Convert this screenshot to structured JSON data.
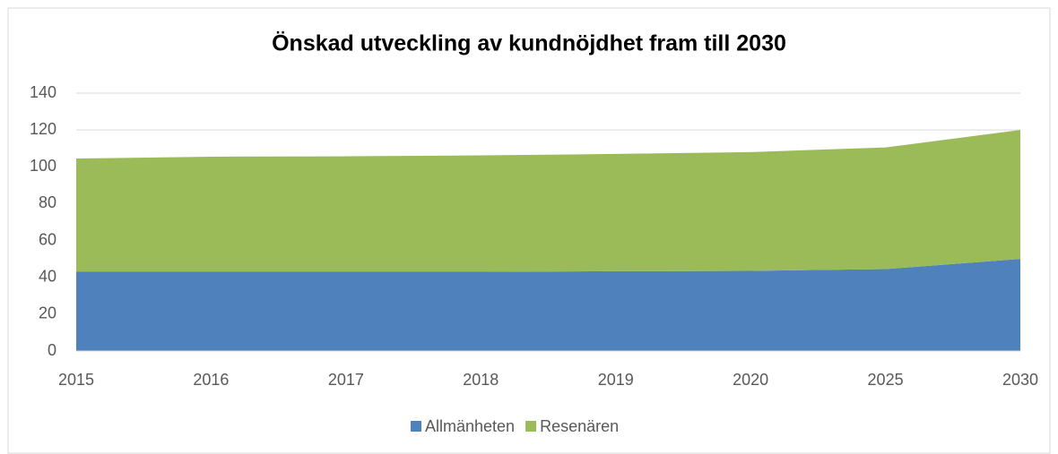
{
  "chart_data": {
    "type": "stacked_area",
    "title": "Önskad utveckling av kundnöjdhet fram till 2030",
    "categories": [
      "2015",
      "2016",
      "2017",
      "2018",
      "2019",
      "2020",
      "2025",
      "2030"
    ],
    "series": [
      {
        "name": "Allmänheten",
        "color": "#4f81bd",
        "values": [
          43,
          43,
          43,
          43,
          43.3,
          43.5,
          44.5,
          50
        ]
      },
      {
        "name": "Resenären",
        "color": "#9bbb59",
        "values": [
          61.5,
          62.5,
          62.7,
          63.2,
          63.7,
          64.5,
          66,
          70
        ]
      }
    ],
    "ylim": [
      0,
      140
    ],
    "yticks": [
      0,
      20,
      40,
      60,
      80,
      100,
      120,
      140
    ],
    "grid": true,
    "legend": "bottom"
  }
}
